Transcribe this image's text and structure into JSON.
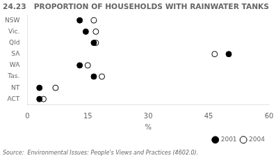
{
  "chart_data": {
    "type": "dot",
    "orientation": "horizontal",
    "title": "24.23   PROPORTION OF HOUSEHOLDS WITH RAINWATER TANKS",
    "categories": [
      "NSW",
      "Vic.",
      "Qld",
      "SA",
      "WA",
      "Tas.",
      "NT",
      "ACT"
    ],
    "series": [
      {
        "name": "2001",
        "color": "#000000",
        "marker": "circle",
        "values": [
          13.0,
          14.5,
          16.5,
          50.0,
          13.0,
          16.5,
          3.0,
          3.0
        ]
      },
      {
        "name": "2004",
        "color": "#000000",
        "marker": "open_circle",
        "values": [
          16.5,
          17.0,
          17.0,
          46.5,
          15.0,
          18.5,
          7.0,
          4.0
        ]
      }
    ],
    "xlabel": "%",
    "xlim": [
      0,
      60
    ],
    "xticks": [
      0,
      15,
      30,
      45,
      60
    ],
    "legend": "lower right",
    "grid": false,
    "annotations": [
      "Source:  Environmental Issues: People's Views and Practices (4602.0)."
    ]
  }
}
